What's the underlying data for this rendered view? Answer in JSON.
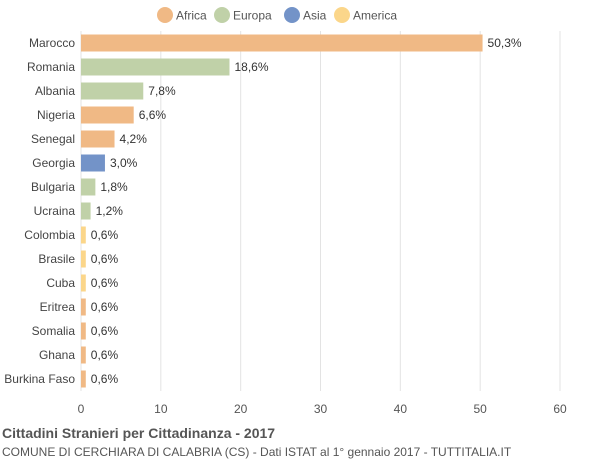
{
  "chart_data": {
    "type": "bar",
    "orientation": "horizontal",
    "categories": [
      "Marocco",
      "Romania",
      "Albania",
      "Nigeria",
      "Senegal",
      "Georgia",
      "Bulgaria",
      "Ucraina",
      "Colombia",
      "Brasile",
      "Cuba",
      "Eritrea",
      "Somalia",
      "Ghana",
      "Burkina Faso"
    ],
    "values": [
      50.3,
      18.6,
      7.8,
      6.6,
      4.2,
      3.0,
      1.8,
      1.2,
      0.6,
      0.6,
      0.6,
      0.6,
      0.6,
      0.6,
      0.6
    ],
    "value_labels": [
      "50,3%",
      "18,6%",
      "7,8%",
      "6,6%",
      "4,2%",
      "3,0%",
      "1,8%",
      "1,2%",
      "0,6%",
      "0,6%",
      "0,6%",
      "0,6%",
      "0,6%",
      "0,6%",
      "0,6%"
    ],
    "groups": [
      "Africa",
      "Europa",
      "Europa",
      "Africa",
      "Africa",
      "Asia",
      "Europa",
      "Europa",
      "America",
      "America",
      "America",
      "Africa",
      "Africa",
      "Africa",
      "Africa"
    ],
    "legend": [
      {
        "name": "Africa",
        "color": "#f0b985"
      },
      {
        "name": "Europa",
        "color": "#c0d1a8"
      },
      {
        "name": "Asia",
        "color": "#7393c8"
      },
      {
        "name": "America",
        "color": "#fbd68a"
      }
    ],
    "legend_position": "top-center",
    "xlim": [
      0,
      60
    ],
    "xticks": [
      0,
      10,
      20,
      30,
      40,
      50,
      60
    ],
    "grid": true,
    "title": "Cittadini Stranieri per Cittadinanza - 2017",
    "subtitle": "COMUNE DI CERCHIARA DI CALABRIA (CS) - Dati ISTAT al 1° gennaio 2017 - TUTTITALIA.IT"
  }
}
